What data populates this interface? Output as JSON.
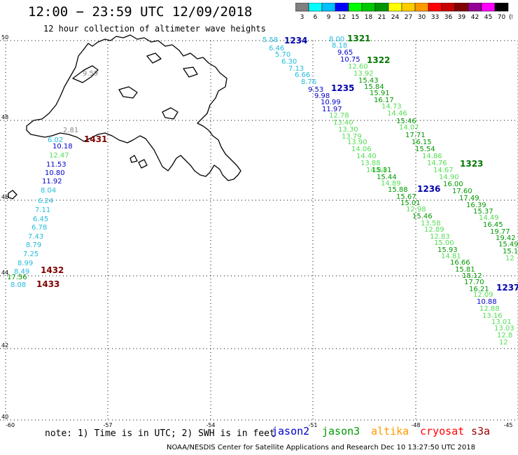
{
  "title": "12:00 − 23:59 UTC 12/09/2018",
  "subtitle": "12 hour collection of altimeter wave heights",
  "legend": {
    "unit": "(ft)",
    "items": [
      {
        "label": "3",
        "color": "#808080"
      },
      {
        "label": "6",
        "color": "#00ffff"
      },
      {
        "label": "9",
        "color": "#00bfff"
      },
      {
        "label": "12",
        "color": "#0000ff"
      },
      {
        "label": "15",
        "color": "#00ff00"
      },
      {
        "label": "18",
        "color": "#00c800"
      },
      {
        "label": "21",
        "color": "#009600"
      },
      {
        "label": "24",
        "color": "#ffff00"
      },
      {
        "label": "27",
        "color": "#ffcc00"
      },
      {
        "label": "30",
        "color": "#ff9900"
      },
      {
        "label": "33",
        "color": "#ff0000"
      },
      {
        "label": "36",
        "color": "#c80000"
      },
      {
        "label": "39",
        "color": "#800000"
      },
      {
        "label": "42",
        "color": "#960096"
      },
      {
        "label": "45",
        "color": "#ff00ff"
      },
      {
        "label": "70",
        "color": "#000000"
      }
    ]
  },
  "axes": {
    "lat_labels": [
      "50",
      "48",
      "46",
      "44",
      "42",
      "40"
    ],
    "lon_labels": [
      "-60",
      "-57",
      "-54",
      "-51",
      "-48",
      "-45"
    ]
  },
  "passes": [
    {
      "label": "1234",
      "color": "#0000aa"
    },
    {
      "label": "1321",
      "color": "#007700"
    },
    {
      "label": "1322",
      "color": "#007700"
    },
    {
      "label": "1235",
      "color": "#0000aa"
    },
    {
      "label": "1323",
      "color": "#007700"
    },
    {
      "label": "1236",
      "color": "#0000aa"
    },
    {
      "label": "1237",
      "color": "#0000aa"
    },
    {
      "label": "1431",
      "color": "#800000"
    },
    {
      "label": "1432",
      "color": "#800000"
    },
    {
      "label": "1433",
      "color": "#800000"
    }
  ],
  "readings": [
    {
      "v": "5.58",
      "c": "#22bbdd"
    },
    {
      "v": "6.46",
      "c": "#22bbdd"
    },
    {
      "v": "5.70",
      "c": "#22bbdd"
    },
    {
      "v": "6.30",
      "c": "#22bbdd"
    },
    {
      "v": "7.13",
      "c": "#22bbdd"
    },
    {
      "v": "6.66",
      "c": "#22bbdd"
    },
    {
      "v": "8.76",
      "c": "#22bbdd"
    },
    {
      "v": "9.53",
      "c": "#0000cc"
    },
    {
      "v": "9.98",
      "c": "#0000cc"
    },
    {
      "v": "10.99",
      "c": "#0000cc"
    },
    {
      "v": "11.97",
      "c": "#0000cc"
    },
    {
      "v": "12.78",
      "c": "#55dd55"
    },
    {
      "v": "13.40",
      "c": "#55dd55"
    },
    {
      "v": "13.30",
      "c": "#55dd55"
    },
    {
      "v": "13.79",
      "c": "#55dd55"
    },
    {
      "v": "13.90",
      "c": "#55dd55"
    },
    {
      "v": "14.06",
      "c": "#55dd55"
    },
    {
      "v": "14.40",
      "c": "#55dd55"
    },
    {
      "v": "13.88",
      "c": "#55dd55"
    },
    {
      "v": "14.84",
      "c": "#55dd55"
    },
    {
      "v": "15.31",
      "c": "#009900"
    },
    {
      "v": "15.44",
      "c": "#009900"
    },
    {
      "v": "14.89",
      "c": "#55dd55"
    },
    {
      "v": "15.88",
      "c": "#009900"
    },
    {
      "v": "15.67",
      "c": "#009900"
    },
    {
      "v": "15.01",
      "c": "#009900"
    },
    {
      "v": "12.98",
      "c": "#55dd55"
    },
    {
      "v": "15.46",
      "c": "#009900"
    },
    {
      "v": "13.58",
      "c": "#55dd55"
    },
    {
      "v": "12.89",
      "c": "#55dd55"
    },
    {
      "v": "12.83",
      "c": "#55dd55"
    },
    {
      "v": "15.00",
      "c": "#55dd55"
    },
    {
      "v": "15.93",
      "c": "#009900"
    },
    {
      "v": "14.81",
      "c": "#55dd55"
    },
    {
      "v": "16.66",
      "c": "#009900"
    },
    {
      "v": "15.81",
      "c": "#009900"
    },
    {
      "v": "18.12",
      "c": "#009900"
    },
    {
      "v": "17.70",
      "c": "#009900"
    },
    {
      "v": "16.21",
      "c": "#009900"
    },
    {
      "v": "12.09",
      "c": "#55dd55"
    },
    {
      "v": "10.88",
      "c": "#0000cc"
    },
    {
      "v": "12.88",
      "c": "#55dd55"
    },
    {
      "v": "13.16",
      "c": "#55dd55"
    },
    {
      "v": "13.01",
      "c": "#55dd55"
    },
    {
      "v": "13.03",
      "c": "#55dd55"
    },
    {
      "v": "12.8",
      "c": "#55dd55"
    },
    {
      "v": "12",
      "c": "#55dd55"
    },
    {
      "v": "8.00",
      "c": "#22bbdd"
    },
    {
      "v": "8.18",
      "c": "#22bbdd"
    },
    {
      "v": "9.65",
      "c": "#0000cc"
    },
    {
      "v": "10.75",
      "c": "#0000cc"
    },
    {
      "v": "12.60",
      "c": "#55dd55"
    },
    {
      "v": "13.92",
      "c": "#55dd55"
    },
    {
      "v": "15.43",
      "c": "#009900"
    },
    {
      "v": "15.84",
      "c": "#009900"
    },
    {
      "v": "15.91",
      "c": "#009900"
    },
    {
      "v": "16.17",
      "c": "#009900"
    },
    {
      "v": "14.73",
      "c": "#55dd55"
    },
    {
      "v": "14.46",
      "c": "#55dd55"
    },
    {
      "v": "15.46",
      "c": "#009900"
    },
    {
      "v": "14.07",
      "c": "#55dd55"
    },
    {
      "v": "17.71",
      "c": "#009900"
    },
    {
      "v": "16.15",
      "c": "#009900"
    },
    {
      "v": "15.54",
      "c": "#009900"
    },
    {
      "v": "14.86",
      "c": "#55dd55"
    },
    {
      "v": "14.76",
      "c": "#55dd55"
    },
    {
      "v": "14.67",
      "c": "#55dd55"
    },
    {
      "v": "14.90",
      "c": "#55dd55"
    },
    {
      "v": "16.00",
      "c": "#009900"
    },
    {
      "v": "17.60",
      "c": "#009900"
    },
    {
      "v": "17.49",
      "c": "#009900"
    },
    {
      "v": "16.39",
      "c": "#009900"
    },
    {
      "v": "15.37",
      "c": "#009900"
    },
    {
      "v": "14.49",
      "c": "#55dd55"
    },
    {
      "v": "16.45",
      "c": "#009900"
    },
    {
      "v": "19.77",
      "c": "#009900"
    },
    {
      "v": "19.42",
      "c": "#009900"
    },
    {
      "v": "15.49",
      "c": "#009900"
    },
    {
      "v": "15.1",
      "c": "#009900"
    },
    {
      "v": "12",
      "c": "#55dd55"
    },
    {
      "v": "9.59",
      "c": "#888888"
    },
    {
      "v": "2.81",
      "c": "#888888"
    },
    {
      "v": "6.02",
      "c": "#22bbdd"
    },
    {
      "v": "10.18",
      "c": "#0000cc"
    },
    {
      "v": "12.47",
      "c": "#55dd55"
    },
    {
      "v": "11.53",
      "c": "#0000cc"
    },
    {
      "v": "10.80",
      "c": "#0000cc"
    },
    {
      "v": "11.92",
      "c": "#0000cc"
    },
    {
      "v": "8.04",
      "c": "#22bbdd"
    },
    {
      "v": "6.24",
      "c": "#22bbdd"
    },
    {
      "v": "7.11",
      "c": "#22bbdd"
    },
    {
      "v": "6.45",
      "c": "#22bbdd"
    },
    {
      "v": "6.78",
      "c": "#22bbdd"
    },
    {
      "v": "7.43",
      "c": "#22bbdd"
    },
    {
      "v": "8.79",
      "c": "#22bbdd"
    },
    {
      "v": "7.25",
      "c": "#22bbdd"
    },
    {
      "v": "8.99",
      "c": "#22bbdd"
    },
    {
      "v": "8.49",
      "c": "#22bbdd"
    },
    {
      "v": "17.56",
      "c": "#009900"
    },
    {
      "v": "8.08",
      "c": "#22bbdd"
    }
  ],
  "note": "note: 1) Time is in UTC; 2) SWH is in feet",
  "missions": [
    {
      "label": "jason2",
      "color": "#0000cc"
    },
    {
      "label": "jason3",
      "color": "#009900"
    },
    {
      "label": "altika",
      "color": "#ff9900"
    },
    {
      "label": "cryosat",
      "color": "#ff0000"
    },
    {
      "label": "s3a",
      "color": "#990000"
    }
  ],
  "credit": "NOAA/NESDIS Center for Satellite Applications and Research   Dec 10 13:27:50 UTC 2018"
}
